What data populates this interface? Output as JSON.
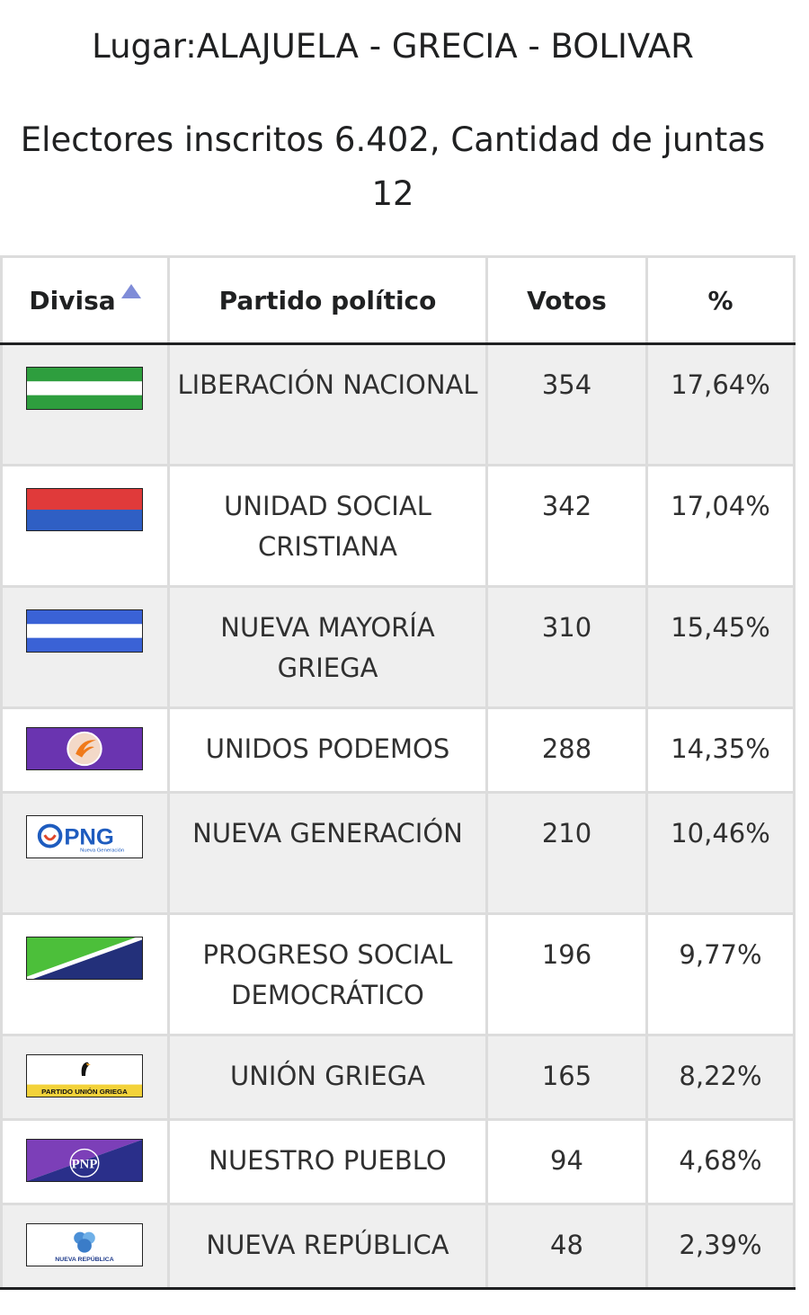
{
  "header": {
    "place": "Lugar:ALAJUELA - GRECIA - BOLIVAR",
    "electors": "Electores inscritos 6.402, Cantidad de juntas 12"
  },
  "table": {
    "headers": {
      "flag": "Divisa",
      "party": "Partido político",
      "votes": "Votos",
      "percent": "%"
    },
    "rows": [
      {
        "flag_icon": "liberacion-nacional-flag",
        "party": "LIBERACIÓN NACIONAL",
        "votes": "354",
        "percent": "17,64%"
      },
      {
        "flag_icon": "unidad-social-cristiana-flag",
        "party": "UNIDAD SOCIAL CRISTIANA",
        "votes": "342",
        "percent": "17,04%"
      },
      {
        "flag_icon": "nueva-mayoria-griega-flag",
        "party": "NUEVA MAYORÍA GRIEGA",
        "votes": "310",
        "percent": "15,45%"
      },
      {
        "flag_icon": "unidos-podemos-flag",
        "party": "UNIDOS PODEMOS",
        "votes": "288",
        "percent": "14,35%"
      },
      {
        "flag_icon": "nueva-generacion-flag",
        "party": "NUEVA GENERACIÓN",
        "votes": "210",
        "percent": "10,46%",
        "flag_text": "PNG",
        "flag_subtext": "Nueva Generación"
      },
      {
        "flag_icon": "progreso-social-democratico-flag",
        "party": "PROGRESO SOCIAL DEMOCRÁTICO",
        "votes": "196",
        "percent": "9,77%"
      },
      {
        "flag_icon": "union-griega-flag",
        "party": "UNIÓN GRIEGA",
        "votes": "165",
        "percent": "8,22%",
        "flag_text": "PARTIDO UNIÓN GRIEGA"
      },
      {
        "flag_icon": "nuestro-pueblo-flag",
        "party": "NUESTRO PUEBLO",
        "votes": "94",
        "percent": "4,68%",
        "flag_text": "PNP"
      },
      {
        "flag_icon": "nueva-republica-flag",
        "party": "NUEVA REPÚBLICA",
        "votes": "48",
        "percent": "2,39%",
        "flag_text": "NUEVA REPÚBLICA"
      }
    ]
  },
  "colors": {
    "sort_arrow": "#7f8cd8",
    "header_border": "#202122",
    "row_alt": "#efefef"
  }
}
